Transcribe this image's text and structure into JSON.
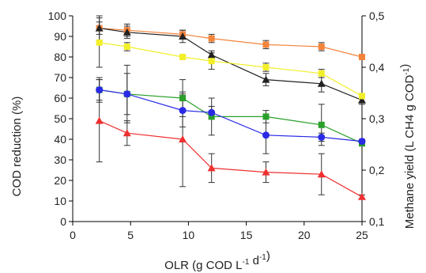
{
  "chart_data": {
    "type": "line",
    "title": "",
    "xlabel": "OLR (g COD L-1 d-1)",
    "xlabel_parts": [
      {
        "text": "OLR (g COD L",
        "sup": false
      },
      {
        "text": "-1",
        "sup": true
      },
      {
        "text": " d",
        "sup": false
      },
      {
        "text": "-1",
        "sup": true
      },
      {
        "text": ")",
        "sup": false
      }
    ],
    "ylabel": "COD reduction (%)",
    "y2label": "Methane yield (L CH4 g COD-1)",
    "y2label_parts": [
      {
        "text": "Methane yield (L CH4 g COD",
        "sup": false
      },
      {
        "text": "-1",
        "sup": true
      },
      {
        "text": ")",
        "sup": false
      }
    ],
    "xlim": [
      0,
      25
    ],
    "ylim": [
      0,
      100
    ],
    "y2lim": [
      0.1,
      0.5
    ],
    "xticks": [
      "0",
      "5",
      "10",
      "15",
      "20",
      "25"
    ],
    "yticks": [
      "0",
      "10",
      "20",
      "30",
      "40",
      "50",
      "60",
      "70",
      "80",
      "90",
      "100"
    ],
    "y2ticks": [
      "0,1",
      "0,2",
      "0,3",
      "0,4",
      "0,5"
    ],
    "grid": false,
    "legend": "none",
    "series": [
      {
        "color": "#f4843c",
        "marker": "square",
        "axis": "left",
        "points": [
          {
            "x": 2.3,
            "y": 94,
            "err": 3
          },
          {
            "x": 4.7,
            "y": 93,
            "err": 3
          },
          {
            "x": 9.5,
            "y": 91,
            "err": 2
          },
          {
            "x": 12,
            "y": 89,
            "err": 2
          },
          {
            "x": 16.7,
            "y": 86,
            "err": 2
          },
          {
            "x": 21.5,
            "y": 85,
            "err": 2
          },
          {
            "x": 25,
            "y": 80,
            "err": 1
          }
        ]
      },
      {
        "color": "#222222",
        "marker": "triangle",
        "axis": "left",
        "points": [
          {
            "x": 2.3,
            "y": 94,
            "err": 6
          },
          {
            "x": 4.7,
            "y": 92,
            "err": 3
          },
          {
            "x": 9.5,
            "y": 90,
            "err": 3
          },
          {
            "x": 12,
            "y": 81,
            "err": 2
          },
          {
            "x": 16.7,
            "y": 69,
            "err": 3
          },
          {
            "x": 21.5,
            "y": 67,
            "err": 4
          },
          {
            "x": 25,
            "y": 59,
            "err": 2
          }
        ]
      },
      {
        "color": "#f2ef2a",
        "marker": "square",
        "axis": "left",
        "points": [
          {
            "x": 2.3,
            "y": 87,
            "err": 12
          },
          {
            "x": 4.7,
            "y": 85,
            "err": 2
          },
          {
            "x": 9.5,
            "y": 80,
            "err": 1
          },
          {
            "x": 12,
            "y": 78,
            "err": 4
          },
          {
            "x": 16.7,
            "y": 75,
            "err": 2
          },
          {
            "x": 21.5,
            "y": 72,
            "err": 2
          },
          {
            "x": 25,
            "y": 61,
            "err": 1
          }
        ]
      },
      {
        "color": "#2aa02a",
        "marker": "square",
        "axis": "left",
        "points": [
          {
            "x": 2.3,
            "y": 64,
            "err": 6
          },
          {
            "x": 4.7,
            "y": 62,
            "err": 10
          },
          {
            "x": 9.5,
            "y": 60,
            "err": 9
          },
          {
            "x": 12,
            "y": 51,
            "err": 9
          },
          {
            "x": 16.7,
            "y": 51,
            "err": 3
          },
          {
            "x": 21.5,
            "y": 47,
            "err": 10
          },
          {
            "x": 25,
            "y": 38,
            "err": 1
          }
        ]
      },
      {
        "color": "#2a2ae6",
        "marker": "circle",
        "axis": "left",
        "points": [
          {
            "x": 2.3,
            "y": 64,
            "err": 5
          },
          {
            "x": 4.7,
            "y": 62,
            "err": 14
          },
          {
            "x": 9.5,
            "y": 54,
            "err": 8
          },
          {
            "x": 12,
            "y": 53,
            "err": 3
          },
          {
            "x": 16.7,
            "y": 42,
            "err": 9
          },
          {
            "x": 21.5,
            "y": 41,
            "err": 2
          },
          {
            "x": 25,
            "y": 39,
            "err": 1
          }
        ]
      },
      {
        "color": "#f03030",
        "marker": "triangle",
        "axis": "left",
        "points": [
          {
            "x": 2.3,
            "y": 49,
            "err": 20
          },
          {
            "x": 4.7,
            "y": 43,
            "err": 6
          },
          {
            "x": 9.5,
            "y": 40,
            "err": 23
          },
          {
            "x": 12,
            "y": 26,
            "err": 7
          },
          {
            "x": 16.7,
            "y": 24,
            "err": 5
          },
          {
            "x": 21.5,
            "y": 23,
            "err": 10
          },
          {
            "x": 25,
            "y": 12,
            "err": 1
          }
        ]
      }
    ]
  }
}
